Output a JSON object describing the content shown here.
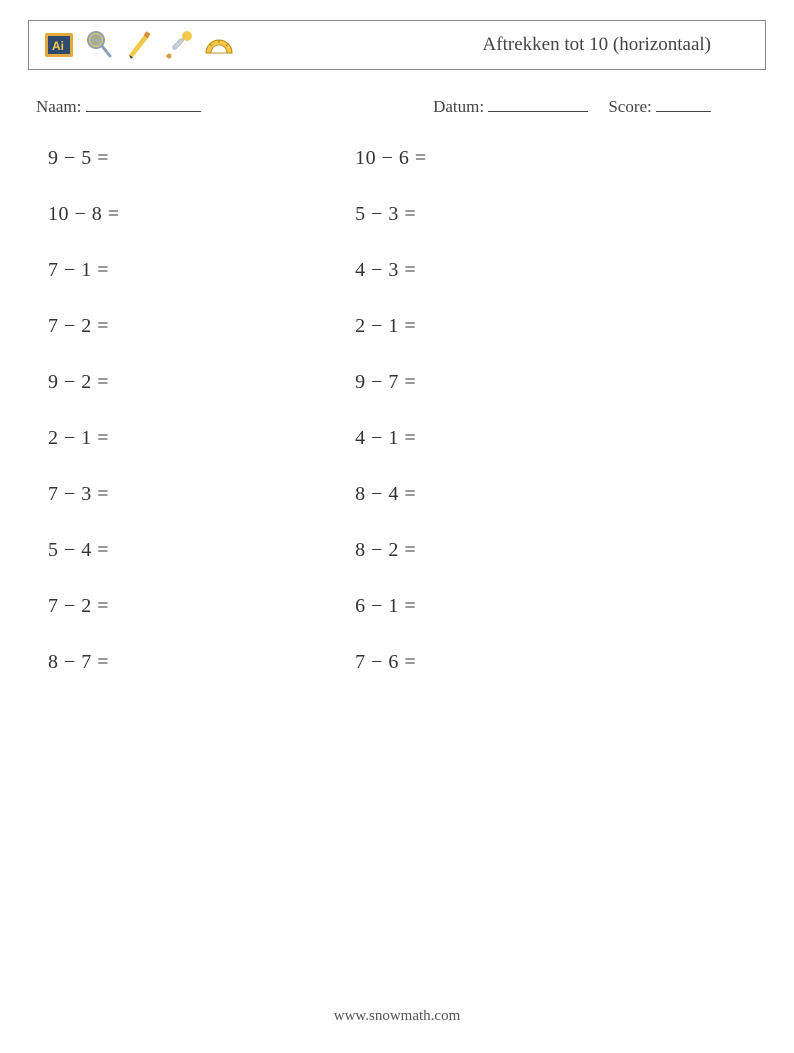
{
  "title": "Aftrekken tot 10 (horizontaal)",
  "labels": {
    "name": "Naam:",
    "date": "Datum:",
    "score": "Score:"
  },
  "icons": [
    {
      "name": "chalkboard-icon"
    },
    {
      "name": "magnifier-icon"
    },
    {
      "name": "pencil-icon"
    },
    {
      "name": "dropper-icon"
    },
    {
      "name": "protractor-icon"
    }
  ],
  "columns": [
    [
      {
        "a": 9,
        "b": 5
      },
      {
        "a": 10,
        "b": 8
      },
      {
        "a": 7,
        "b": 1
      },
      {
        "a": 7,
        "b": 2
      },
      {
        "a": 9,
        "b": 2
      },
      {
        "a": 2,
        "b": 1
      },
      {
        "a": 7,
        "b": 3
      },
      {
        "a": 5,
        "b": 4
      },
      {
        "a": 7,
        "b": 2
      },
      {
        "a": 8,
        "b": 7
      }
    ],
    [
      {
        "a": 10,
        "b": 6
      },
      {
        "a": 5,
        "b": 3
      },
      {
        "a": 4,
        "b": 3
      },
      {
        "a": 2,
        "b": 1
      },
      {
        "a": 9,
        "b": 7
      },
      {
        "a": 4,
        "b": 1
      },
      {
        "a": 8,
        "b": 4
      },
      {
        "a": 8,
        "b": 2
      },
      {
        "a": 6,
        "b": 1
      },
      {
        "a": 7,
        "b": 6
      }
    ]
  ],
  "operator": "−",
  "equals": "=",
  "footer": "www.snowmath.com",
  "style": {
    "page_bg": "#ffffff",
    "text_color": "#333333",
    "border_color": "#888888",
    "title_fontsize": 19,
    "label_fontsize": 17,
    "problem_fontsize": 20,
    "footer_fontsize": 15,
    "icon_colors": {
      "chalkboard_frame": "#e0a93e",
      "chalkboard_board": "#2f4a6e",
      "chalkboard_text": "#f2c94c",
      "magnifier_bulb": "#f2c94c",
      "magnifier_glass": "#6ea0d6",
      "magnifier_handle": "#8aa0b8",
      "pencil_body": "#f2c94c",
      "pencil_tip": "#5a3b1a",
      "dropper_bulb": "#f2c94c",
      "dropper_tube": "#c9cfd6",
      "dropper_drop": "#e09a3e",
      "protractor_body": "#f2c94c",
      "protractor_lines": "#b8860b"
    }
  }
}
